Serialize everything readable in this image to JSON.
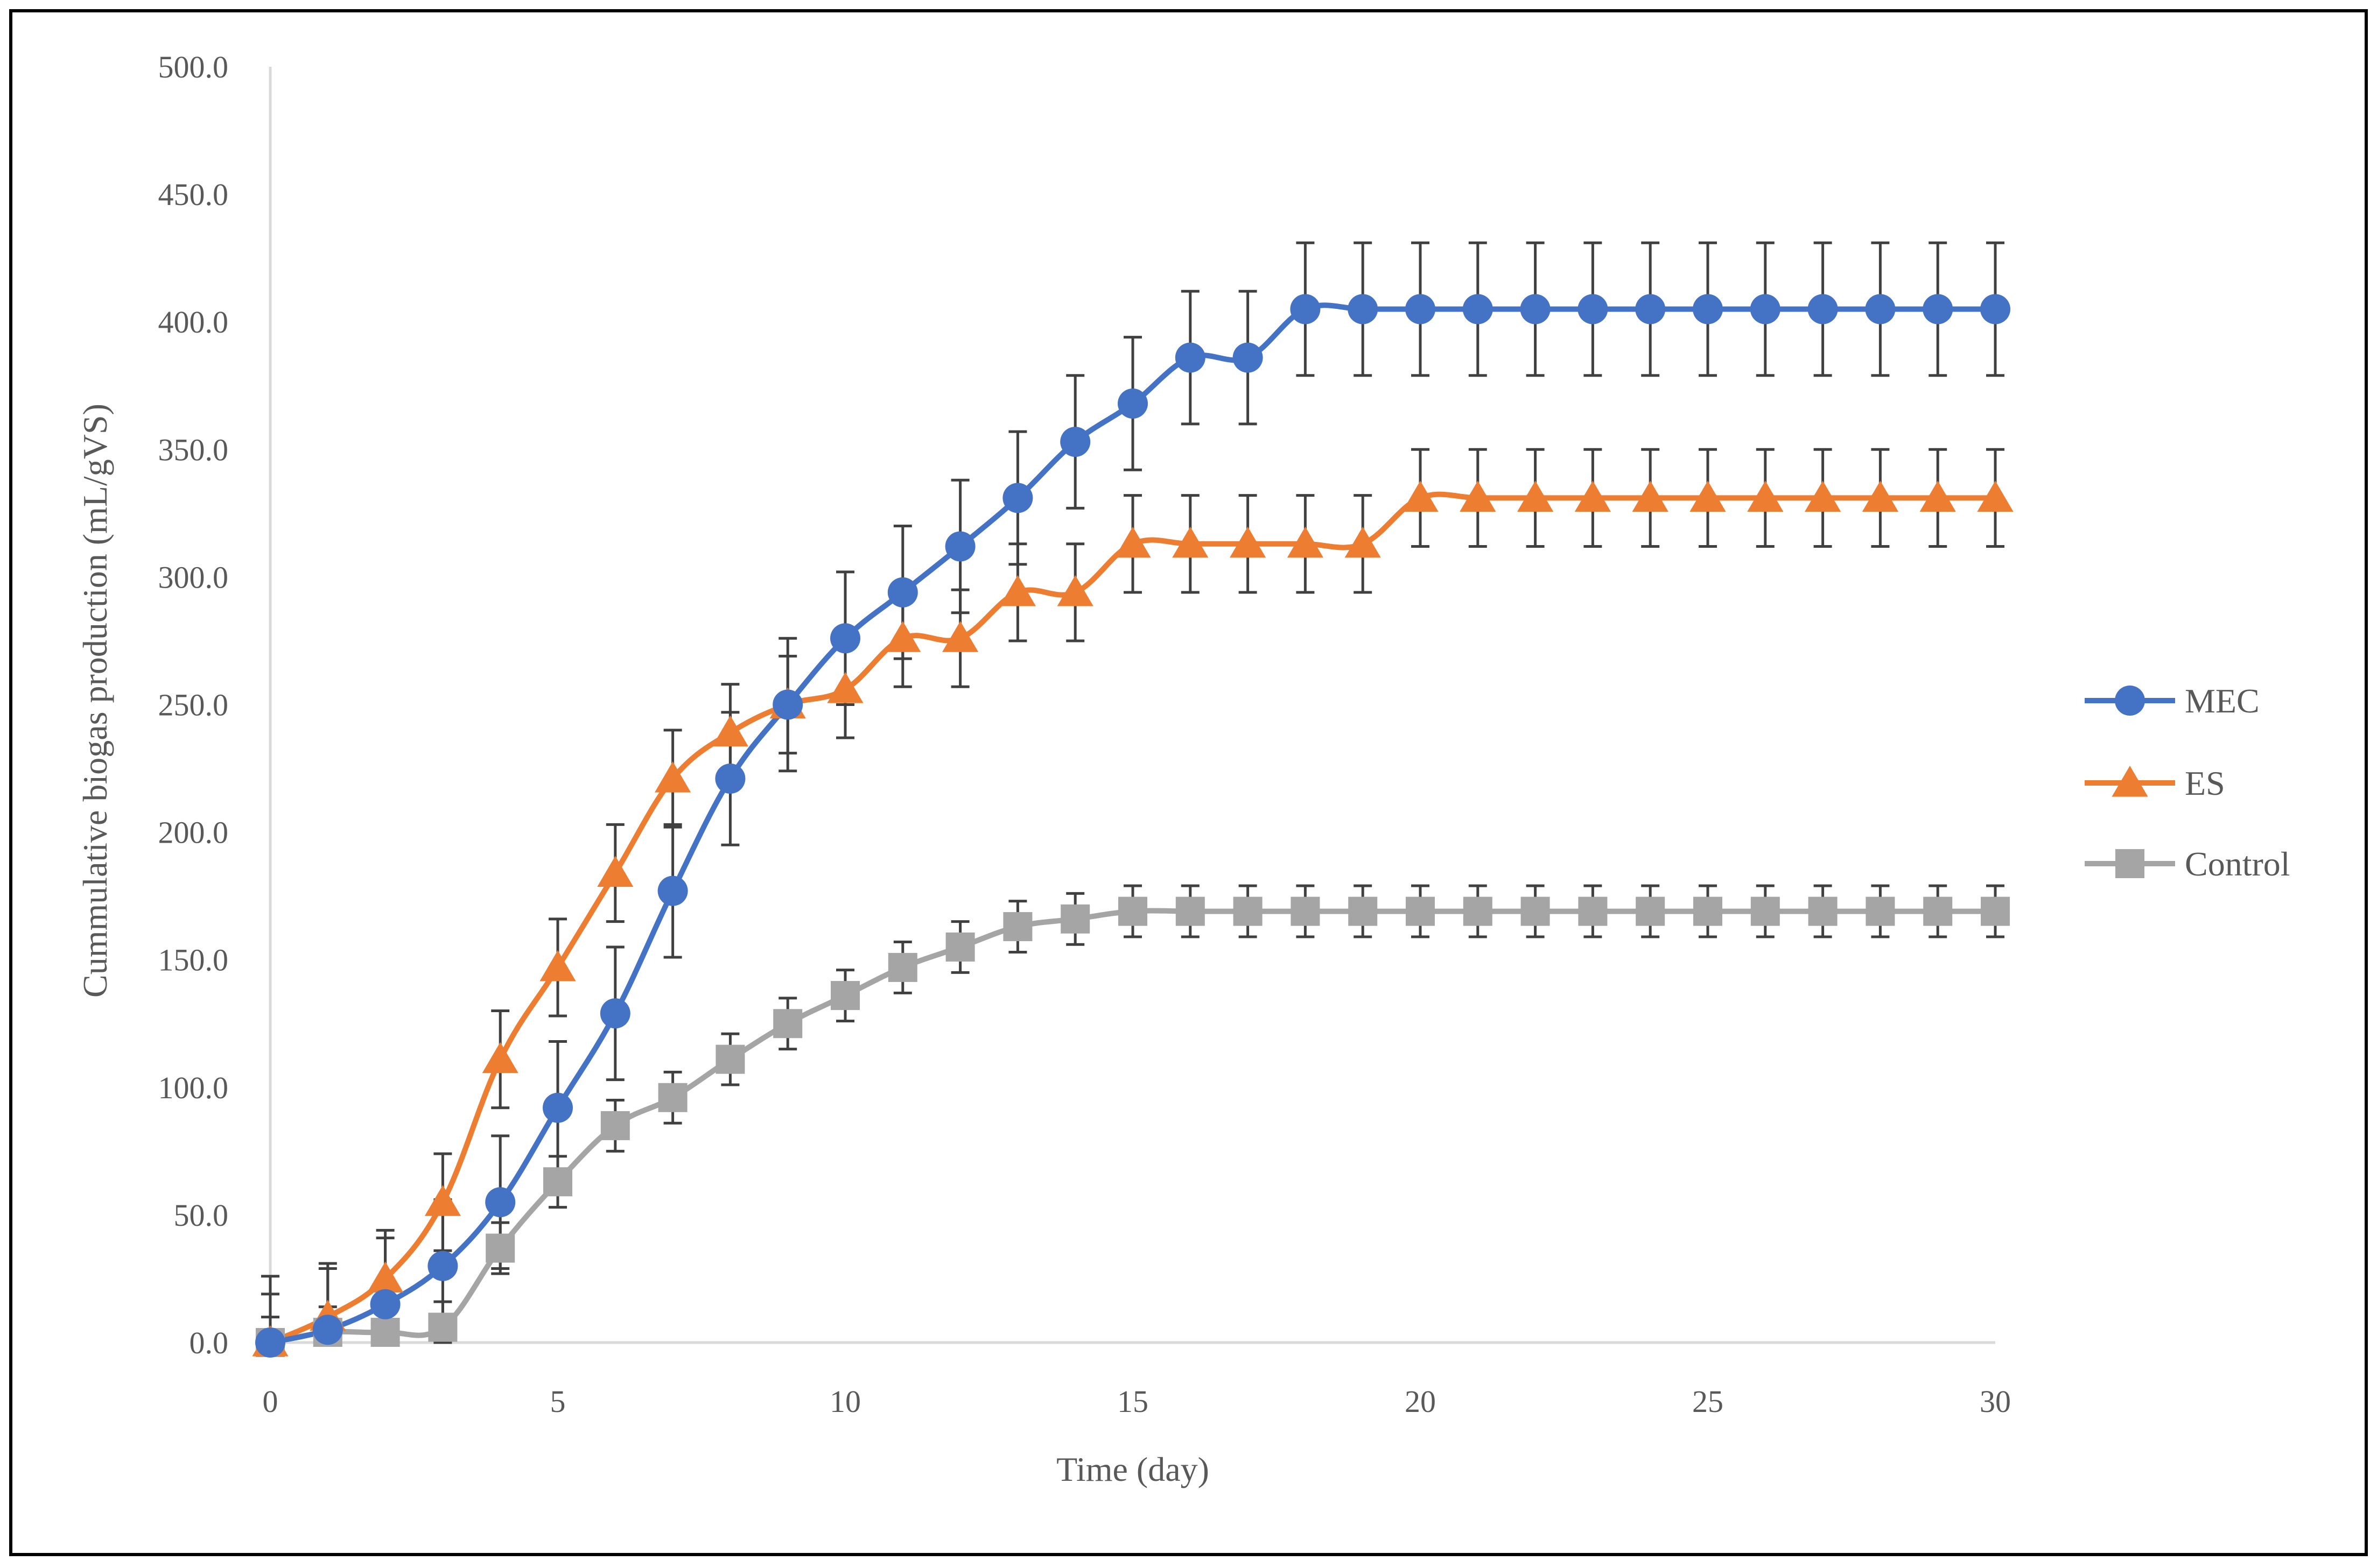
{
  "chart_data": {
    "type": "line",
    "title": "",
    "xlabel": "Time (day)",
    "ylabel": "Cummulative biogas production (mL/gVS)",
    "xlim": [
      0,
      30
    ],
    "ylim": [
      0,
      500
    ],
    "x_ticks": [
      "0",
      "5",
      "10",
      "15",
      "20",
      "25",
      "30"
    ],
    "x_tick_values": [
      0,
      5,
      10,
      15,
      20,
      25,
      30
    ],
    "y_ticks": [
      "0.0",
      "50.0",
      "100.0",
      "150.0",
      "200.0",
      "250.0",
      "300.0",
      "350.0",
      "400.0",
      "450.0",
      "500.0"
    ],
    "y_tick_values": [
      0,
      50,
      100,
      150,
      200,
      250,
      300,
      350,
      400,
      450,
      500
    ],
    "grid": false,
    "legend_position": "right",
    "x": [
      0,
      1,
      2,
      3,
      4,
      5,
      6,
      7,
      8,
      9,
      10,
      11,
      12,
      13,
      14,
      15,
      16,
      17,
      18,
      19,
      20,
      21,
      22,
      23,
      24,
      25,
      26,
      27,
      28,
      29,
      30
    ],
    "series": [
      {
        "name": "MEC",
        "color": "#4472C4",
        "marker": "circle",
        "values": [
          0,
          5,
          15,
          30,
          55,
          92,
          129,
          177,
          221,
          250,
          276,
          294,
          312,
          331,
          353,
          368,
          386,
          386,
          405,
          405,
          405,
          405,
          405,
          405,
          405,
          405,
          405,
          405,
          405,
          405,
          405
        ],
        "error": [
          26,
          26,
          26,
          26,
          26,
          26,
          26,
          26,
          26,
          26,
          26,
          26,
          26,
          26,
          26,
          26,
          26,
          26,
          26,
          26,
          26,
          26,
          26,
          26,
          26,
          26,
          26,
          26,
          26,
          26,
          26
        ]
      },
      {
        "name": "ES",
        "color": "#ED7D31",
        "marker": "triangle",
        "values": [
          0,
          10,
          25,
          55,
          111,
          147,
          184,
          221,
          239,
          250,
          256,
          276,
          276,
          294,
          294,
          313,
          313,
          313,
          313,
          313,
          331,
          331,
          331,
          331,
          331,
          331,
          331,
          331,
          331,
          331,
          331
        ],
        "error": [
          19,
          19,
          19,
          19,
          19,
          19,
          19,
          19,
          19,
          19,
          19,
          19,
          19,
          19,
          19,
          19,
          19,
          19,
          19,
          19,
          19,
          19,
          19,
          19,
          19,
          19,
          19,
          19,
          19,
          19,
          19
        ]
      },
      {
        "name": "Control",
        "color": "#A5A5A5",
        "marker": "square",
        "values": [
          0,
          4,
          4,
          6,
          37,
          63,
          85,
          96,
          111,
          125,
          136,
          147,
          155,
          163,
          166,
          169,
          169,
          169,
          169,
          169,
          169,
          169,
          169,
          169,
          169,
          169,
          169,
          169,
          169,
          169,
          169
        ],
        "error": [
          10,
          10,
          10,
          10,
          10,
          10,
          10,
          10,
          10,
          10,
          10,
          10,
          10,
          10,
          10,
          10,
          10,
          10,
          10,
          10,
          10,
          10,
          10,
          10,
          10,
          10,
          10,
          10,
          10,
          10,
          10
        ]
      }
    ]
  }
}
